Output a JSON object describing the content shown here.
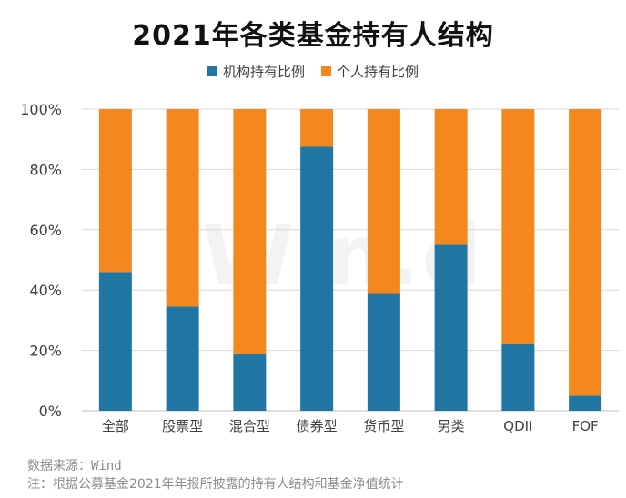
{
  "chart_data": {
    "type": "bar",
    "stacked": true,
    "title": "2021年各类基金持有人结构",
    "categories": [
      "全部",
      "股票型",
      "混合型",
      "债券型",
      "货币型",
      "另类",
      "QDII",
      "FOF"
    ],
    "series": [
      {
        "name": "机构持有比例",
        "color": "#2176a3",
        "values": [
          46,
          34.5,
          19,
          87.5,
          39,
          55,
          22,
          5
        ]
      },
      {
        "name": "个人持有比例",
        "color": "#f5871f",
        "values": [
          54,
          65.5,
          81,
          12.5,
          61,
          45,
          78,
          95
        ]
      }
    ],
    "ylim": [
      0,
      100
    ],
    "yticks": [
      "0%",
      "20%",
      "40%",
      "60%",
      "80%",
      "100%"
    ],
    "grid": true,
    "legend_position": "top-center",
    "xlabel": "",
    "ylabel": ""
  },
  "watermark": "Win.d",
  "footer": {
    "source": "数据来源：Wind",
    "note": "注：根据公募基金2021年年报所披露的持有人结构和基金净值统计"
  }
}
